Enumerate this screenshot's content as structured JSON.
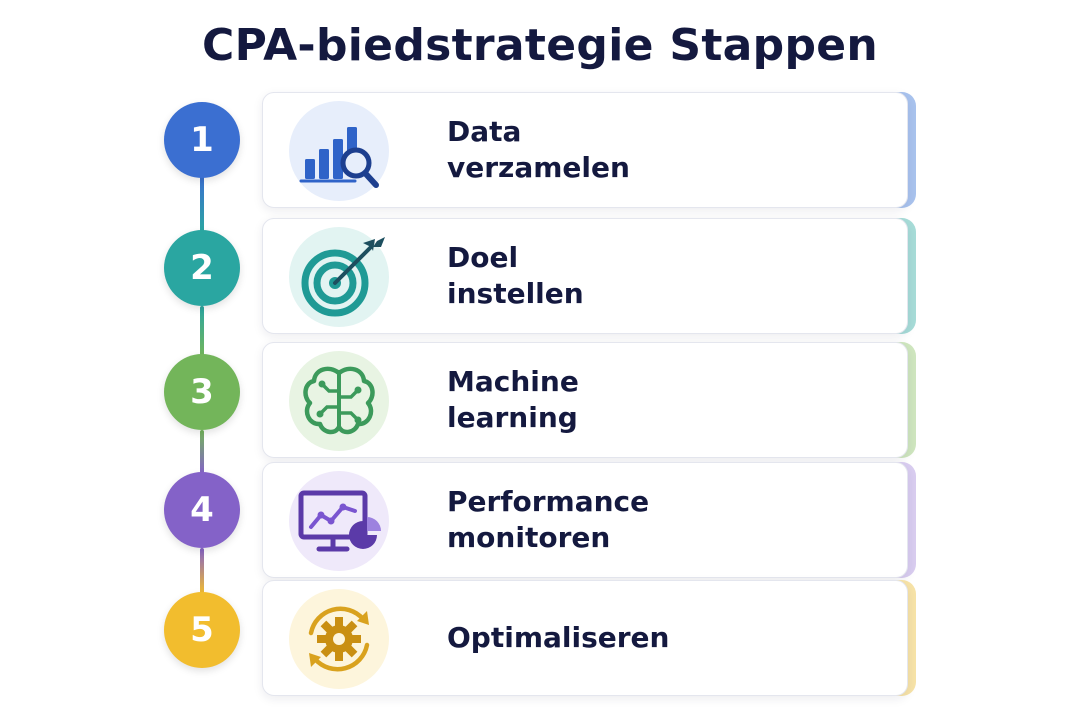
{
  "title": "CPA-biedstrategie Stappen",
  "colors": {
    "step1": "#3b6fd1",
    "step2": "#2aa6a1",
    "step3": "#73b55a",
    "step4": "#8462c8",
    "step5": "#f2bd2e",
    "text": "#14193f"
  },
  "steps": [
    {
      "number": "1",
      "label": "Data\nverzamelen",
      "icon": "bar-chart-magnifier-icon"
    },
    {
      "number": "2",
      "label": "Doel\ninstellen",
      "icon": "target-arrow-icon"
    },
    {
      "number": "3",
      "label": "Machine\nlearning",
      "icon": "brain-circuit-icon"
    },
    {
      "number": "4",
      "label": "Performance\nmonitoren",
      "icon": "monitor-chart-icon"
    },
    {
      "number": "5",
      "label": "Optimaliseren",
      "icon": "gear-cycle-icon"
    }
  ]
}
